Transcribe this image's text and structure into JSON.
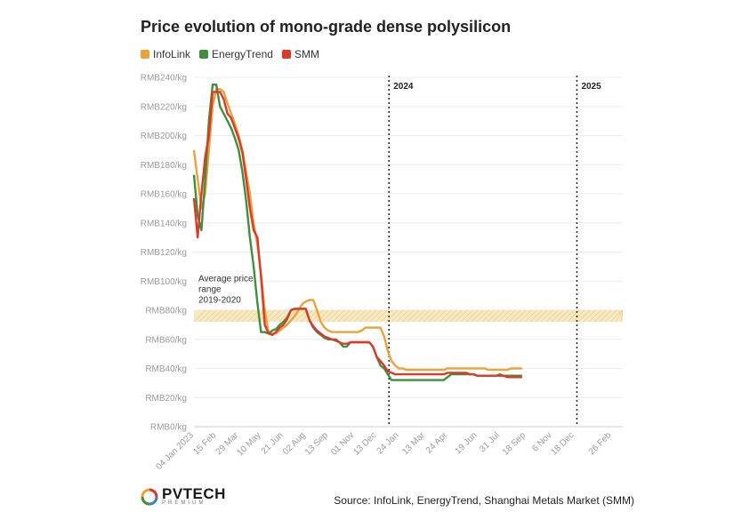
{
  "title": "Price evolution of mono-grade dense polysilicon",
  "legend": [
    {
      "name": "InfoLink",
      "color": "#e8a33a"
    },
    {
      "name": "EnergyTrend",
      "color": "#3f8f3f"
    },
    {
      "name": "SMM",
      "color": "#d93a2b"
    }
  ],
  "source": "Source: InfoLink, EnergyTrend, Shanghai Metals Market (SMM)",
  "logo": {
    "main": "PVTECH",
    "sub": "PREMIUM"
  },
  "chart_data": {
    "type": "line",
    "title": "Price evolution of mono-grade dense polysilicon",
    "xlabel": "",
    "ylabel": "",
    "ylim": [
      0,
      240
    ],
    "grid": true,
    "y_ticks": [
      "RMB0/kg",
      "RMB20/kg",
      "RMB40/kg",
      "RMB60/kg",
      "RMB80/kg",
      "RMB100/kg",
      "RMB120/kg",
      "RMB140/kg",
      "RMB160/kg",
      "RMB180/kg",
      "RMB200/kg",
      "RMB220/kg",
      "RMB240/kg"
    ],
    "x_ticks": [
      {
        "label": "04 Jan 2023",
        "week": 0
      },
      {
        "label": "15 Feb",
        "week": 6
      },
      {
        "label": "29 Mar",
        "week": 12
      },
      {
        "label": "10 May",
        "week": 18
      },
      {
        "label": "21 Jun",
        "week": 24
      },
      {
        "label": "02 Aug",
        "week": 30
      },
      {
        "label": "13 Sep",
        "week": 36
      },
      {
        "label": "01 Nov",
        "week": 43
      },
      {
        "label": "13 Dec",
        "week": 49
      },
      {
        "label": "24 Jan",
        "week": 55
      },
      {
        "label": "13 Mar",
        "week": 62
      },
      {
        "label": "24 Apr",
        "week": 68
      },
      {
        "label": "19 Jun",
        "week": 76
      },
      {
        "label": "31 Jul",
        "week": 82
      },
      {
        "label": "18 Sep",
        "week": 89
      },
      {
        "label": "6 Nov",
        "week": 96
      },
      {
        "label": "18 Dec",
        "week": 102
      },
      {
        "label": "26 Feb",
        "week": 112
      }
    ],
    "x_range": [
      0,
      115
    ],
    "markers": [
      {
        "label": "2024",
        "week": 52.3
      },
      {
        "label": "2025",
        "week": 102.7
      }
    ],
    "band": {
      "low": 72,
      "high": 80,
      "label": [
        "Average price",
        "range",
        "2019-2020"
      ]
    },
    "series": [
      {
        "name": "InfoLink",
        "color": "#e8a33a",
        "points": [
          [
            0,
            190
          ],
          [
            1,
            170
          ],
          [
            2,
            150
          ],
          [
            3,
            160
          ],
          [
            4,
            190
          ],
          [
            5,
            220
          ],
          [
            6,
            232
          ],
          [
            7,
            232
          ],
          [
            8,
            230
          ],
          [
            9,
            222
          ],
          [
            10,
            215
          ],
          [
            11,
            208
          ],
          [
            12,
            200
          ],
          [
            13,
            190
          ],
          [
            14,
            175
          ],
          [
            15,
            160
          ],
          [
            16,
            140
          ],
          [
            17,
            125
          ],
          [
            18,
            105
          ],
          [
            19,
            80
          ],
          [
            20,
            65
          ],
          [
            21,
            64
          ],
          [
            22,
            64
          ],
          [
            23,
            66
          ],
          [
            24,
            68
          ],
          [
            25,
            70
          ],
          [
            26,
            73
          ],
          [
            27,
            76
          ],
          [
            28,
            80
          ],
          [
            29,
            84
          ],
          [
            30,
            86
          ],
          [
            31,
            87
          ],
          [
            32,
            87
          ],
          [
            33,
            80
          ],
          [
            34,
            72
          ],
          [
            35,
            68
          ],
          [
            36,
            66
          ],
          [
            37,
            65
          ],
          [
            38,
            65
          ],
          [
            39,
            65
          ],
          [
            40,
            65
          ],
          [
            41,
            65
          ],
          [
            42,
            65
          ],
          [
            43,
            65
          ],
          [
            44,
            65
          ],
          [
            45,
            66
          ],
          [
            46,
            68
          ],
          [
            47,
            68
          ],
          [
            48,
            68
          ],
          [
            49,
            68
          ],
          [
            50,
            68
          ],
          [
            51,
            62
          ],
          [
            52,
            52
          ],
          [
            53,
            45
          ],
          [
            54,
            42
          ],
          [
            55,
            40
          ],
          [
            56,
            40
          ],
          [
            57,
            39
          ],
          [
            58,
            39
          ],
          [
            59,
            39
          ],
          [
            60,
            39
          ],
          [
            61,
            39
          ],
          [
            62,
            39
          ],
          [
            63,
            39
          ],
          [
            64,
            39
          ],
          [
            65,
            39
          ],
          [
            66,
            39
          ],
          [
            67,
            39
          ],
          [
            68,
            40
          ],
          [
            69,
            40
          ],
          [
            70,
            40
          ],
          [
            71,
            40
          ],
          [
            72,
            40
          ],
          [
            73,
            40
          ],
          [
            74,
            40
          ],
          [
            75,
            40
          ],
          [
            76,
            40
          ],
          [
            77,
            40
          ],
          [
            78,
            40
          ],
          [
            79,
            39
          ],
          [
            80,
            39
          ],
          [
            81,
            39
          ],
          [
            82,
            39
          ],
          [
            83,
            39
          ],
          [
            84,
            39
          ],
          [
            85,
            40
          ],
          [
            86,
            40
          ],
          [
            87,
            40
          ],
          [
            88,
            40
          ]
        ]
      },
      {
        "name": "EnergyTrend",
        "color": "#3f8f3f",
        "points": [
          [
            0,
            173
          ],
          [
            1,
            145
          ],
          [
            2,
            135
          ],
          [
            3,
            170
          ],
          [
            4,
            210
          ],
          [
            5,
            235
          ],
          [
            6,
            235
          ],
          [
            7,
            220
          ],
          [
            8,
            215
          ],
          [
            9,
            210
          ],
          [
            10,
            205
          ],
          [
            11,
            198
          ],
          [
            12,
            190
          ],
          [
            13,
            175
          ],
          [
            14,
            155
          ],
          [
            15,
            130
          ],
          [
            16,
            110
          ],
          [
            17,
            85
          ],
          [
            18,
            65
          ],
          [
            19,
            65
          ],
          [
            20,
            64
          ],
          [
            21,
            66
          ],
          [
            22,
            67
          ],
          [
            23,
            70
          ],
          [
            24,
            72
          ],
          [
            25,
            75
          ],
          [
            26,
            80
          ],
          [
            27,
            81
          ],
          [
            28,
            81
          ],
          [
            29,
            81
          ],
          [
            30,
            81
          ],
          [
            31,
            73
          ],
          [
            32,
            68
          ],
          [
            33,
            65
          ],
          [
            34,
            63
          ],
          [
            35,
            61
          ],
          [
            36,
            60
          ],
          [
            37,
            60
          ],
          [
            38,
            59
          ],
          [
            39,
            58
          ],
          [
            40,
            55
          ],
          [
            41,
            55
          ],
          [
            42,
            58
          ],
          [
            43,
            58
          ],
          [
            44,
            58
          ],
          [
            45,
            58
          ],
          [
            46,
            58
          ],
          [
            47,
            58
          ],
          [
            48,
            55
          ],
          [
            49,
            48
          ],
          [
            50,
            42
          ],
          [
            51,
            40
          ],
          [
            52,
            36
          ],
          [
            53,
            32
          ],
          [
            54,
            32
          ],
          [
            55,
            32
          ],
          [
            56,
            32
          ],
          [
            57,
            32
          ],
          [
            58,
            32
          ],
          [
            59,
            32
          ],
          [
            60,
            32
          ],
          [
            61,
            32
          ],
          [
            62,
            32
          ],
          [
            63,
            32
          ],
          [
            64,
            32
          ],
          [
            65,
            32
          ],
          [
            66,
            32
          ],
          [
            67,
            32
          ],
          [
            68,
            34
          ],
          [
            69,
            36
          ],
          [
            70,
            36
          ],
          [
            71,
            36
          ],
          [
            72,
            36
          ],
          [
            73,
            36
          ],
          [
            74,
            36
          ],
          [
            75,
            36
          ],
          [
            76,
            35
          ],
          [
            77,
            35
          ],
          [
            78,
            35
          ],
          [
            79,
            35
          ],
          [
            80,
            35
          ],
          [
            81,
            35
          ],
          [
            82,
            36
          ],
          [
            83,
            35
          ],
          [
            84,
            35
          ],
          [
            85,
            35
          ],
          [
            86,
            35
          ],
          [
            87,
            35
          ],
          [
            88,
            35
          ]
        ]
      },
      {
        "name": "SMM",
        "color": "#d93a2b",
        "points": [
          [
            0,
            157
          ],
          [
            1,
            130
          ],
          [
            2,
            160
          ],
          [
            3,
            185
          ],
          [
            4,
            200
          ],
          [
            5,
            230
          ],
          [
            6,
            230
          ],
          [
            7,
            230
          ],
          [
            8,
            225
          ],
          [
            9,
            215
          ],
          [
            10,
            212
          ],
          [
            11,
            205
          ],
          [
            12,
            198
          ],
          [
            13,
            188
          ],
          [
            14,
            170
          ],
          [
            15,
            150
          ],
          [
            16,
            135
          ],
          [
            17,
            130
          ],
          [
            18,
            103
          ],
          [
            19,
            70
          ],
          [
            20,
            64
          ],
          [
            21,
            63
          ],
          [
            22,
            65
          ],
          [
            23,
            68
          ],
          [
            24,
            70
          ],
          [
            25,
            74
          ],
          [
            26,
            80
          ],
          [
            27,
            81
          ],
          [
            28,
            81
          ],
          [
            29,
            81
          ],
          [
            30,
            81
          ],
          [
            31,
            73
          ],
          [
            32,
            69
          ],
          [
            33,
            66
          ],
          [
            34,
            64
          ],
          [
            35,
            62
          ],
          [
            36,
            61
          ],
          [
            37,
            60
          ],
          [
            38,
            60
          ],
          [
            39,
            58
          ],
          [
            40,
            57
          ],
          [
            41,
            57
          ],
          [
            42,
            58
          ],
          [
            43,
            58
          ],
          [
            44,
            58
          ],
          [
            45,
            58
          ],
          [
            46,
            58
          ],
          [
            47,
            58
          ],
          [
            48,
            55
          ],
          [
            49,
            48
          ],
          [
            50,
            45
          ],
          [
            51,
            42
          ],
          [
            52,
            38
          ],
          [
            53,
            37
          ],
          [
            54,
            36
          ],
          [
            55,
            36
          ],
          [
            56,
            36
          ],
          [
            57,
            36
          ],
          [
            58,
            36
          ],
          [
            59,
            36
          ],
          [
            60,
            36
          ],
          [
            61,
            36
          ],
          [
            62,
            36
          ],
          [
            63,
            36
          ],
          [
            64,
            36
          ],
          [
            65,
            36
          ],
          [
            66,
            36
          ],
          [
            67,
            36
          ],
          [
            68,
            37
          ],
          [
            69,
            37
          ],
          [
            70,
            37
          ],
          [
            71,
            37
          ],
          [
            72,
            37
          ],
          [
            73,
            37
          ],
          [
            74,
            36
          ],
          [
            75,
            36
          ],
          [
            76,
            35
          ],
          [
            77,
            35
          ],
          [
            78,
            35
          ],
          [
            79,
            35
          ],
          [
            80,
            35
          ],
          [
            81,
            35
          ],
          [
            82,
            35
          ],
          [
            83,
            35
          ],
          [
            84,
            34
          ],
          [
            85,
            34
          ],
          [
            86,
            34
          ],
          [
            87,
            34
          ],
          [
            88,
            34
          ]
        ]
      }
    ]
  }
}
